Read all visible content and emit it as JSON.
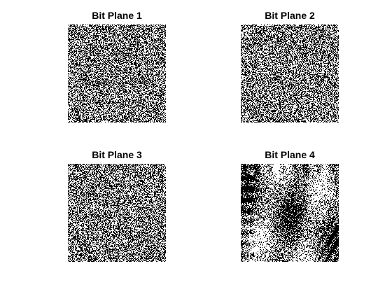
{
  "figure": {
    "background": "#ffffff",
    "subplots": [
      {
        "title": "Bit Plane 1",
        "pattern": "random-noise",
        "black_fraction": 0.5
      },
      {
        "title": "Bit Plane 2",
        "pattern": "random-noise",
        "black_fraction": 0.5
      },
      {
        "title": "Bit Plane 3",
        "pattern": "random-noise",
        "black_fraction": 0.5
      },
      {
        "title": "Bit Plane 4",
        "pattern": "noise-with-structure",
        "black_fraction": 0.5
      }
    ]
  }
}
